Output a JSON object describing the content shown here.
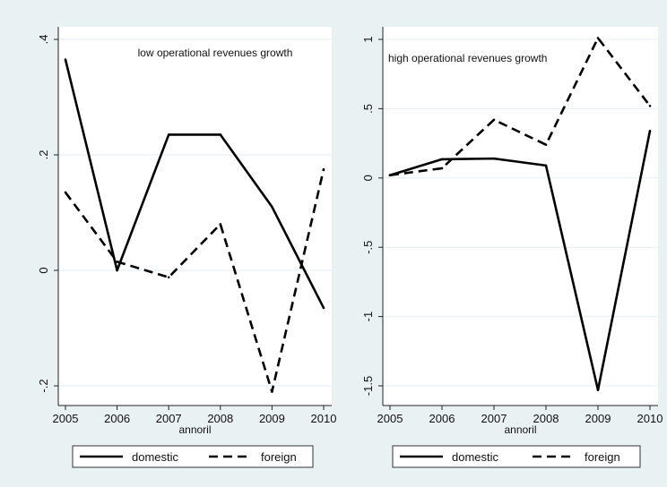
{
  "chart_data": [
    {
      "type": "line",
      "title": "low operational revenues growth",
      "xlabel": "annoril",
      "ylabel": "",
      "x": [
        2005,
        2006,
        2007,
        2008,
        2009,
        2010
      ],
      "x_tick_labels": [
        "2005",
        "2006",
        "2007",
        "2008",
        "2009",
        "2010"
      ],
      "ylim": [
        -0.2,
        0.4
      ],
      "y_ticks": [
        -0.2,
        0,
        0.2,
        0.4
      ],
      "y_tick_labels": [
        "-.2",
        "0",
        ".2",
        ".4"
      ],
      "grid": true,
      "legend_position": "bottom",
      "series": [
        {
          "name": "domestic",
          "style": "solid",
          "color": "#000000",
          "values": [
            0.365,
            0.0,
            0.235,
            0.235,
            0.11,
            -0.065
          ]
        },
        {
          "name": "foreign",
          "style": "dashed",
          "color": "#000000",
          "values": [
            0.135,
            0.015,
            -0.012,
            0.08,
            -0.21,
            0.175
          ]
        }
      ]
    },
    {
      "type": "line",
      "title": "high operational revenues growth",
      "xlabel": "annoril",
      "ylabel": "",
      "x": [
        2005,
        2006,
        2007,
        2008,
        2009,
        2010
      ],
      "x_tick_labels": [
        "2005",
        "2006",
        "2007",
        "2008",
        "2009",
        "2010"
      ],
      "ylim": [
        -1.5,
        1
      ],
      "y_ticks": [
        -1.5,
        -1,
        -0.5,
        0,
        0.5,
        1
      ],
      "y_tick_labels": [
        "-1.5",
        "-1",
        "-.5",
        "0",
        ".5",
        "1"
      ],
      "grid": true,
      "legend_position": "bottom",
      "series": [
        {
          "name": "domestic",
          "style": "solid",
          "color": "#000000",
          "values": [
            0.02,
            0.135,
            0.14,
            0.09,
            -1.53,
            0.34
          ]
        },
        {
          "name": "foreign",
          "style": "dashed",
          "color": "#000000",
          "values": [
            0.02,
            0.07,
            0.42,
            0.24,
            1.01,
            0.52
          ]
        }
      ]
    }
  ]
}
